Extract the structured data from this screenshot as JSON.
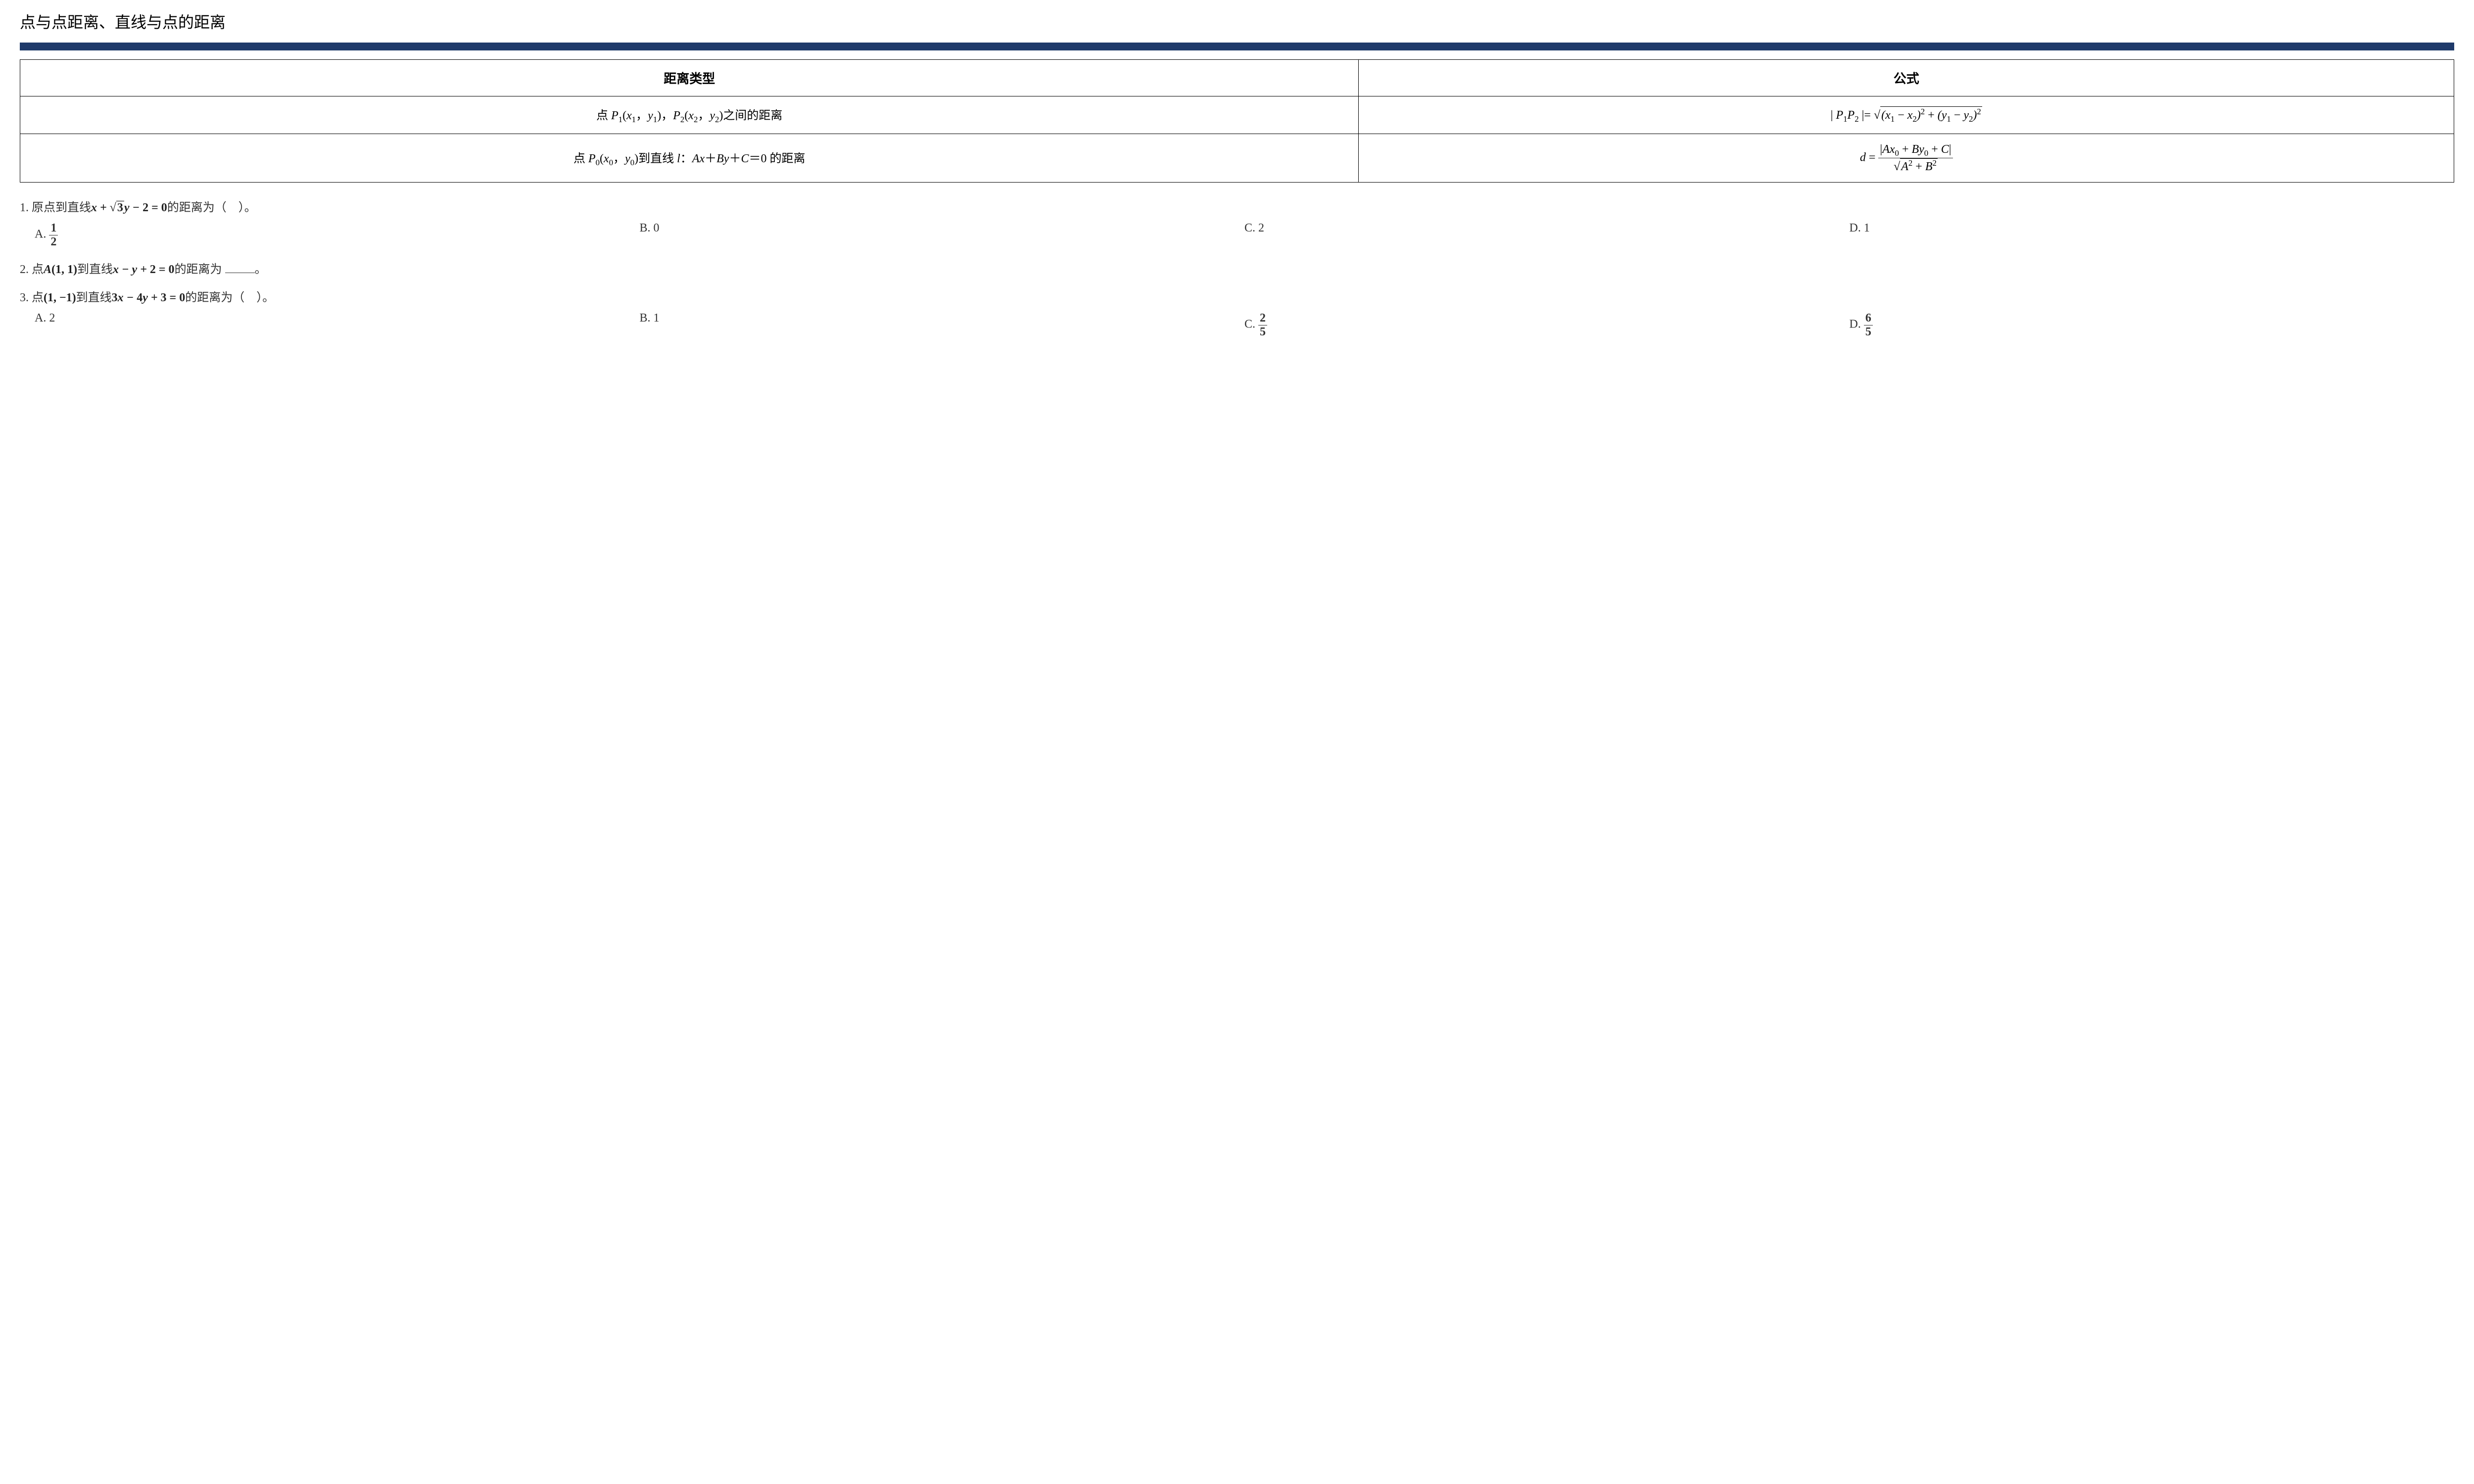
{
  "colors": {
    "bar": "#1f3a6a",
    "border": "#000000",
    "text": "#000000",
    "question_text": "#333333",
    "background": "#ffffff"
  },
  "title": "点与点距离、直线与点的距离",
  "table": {
    "headers": {
      "type": "距离类型",
      "formula": "公式"
    },
    "row1": {
      "desc_prefix": "点 ",
      "desc_mid": "，",
      "desc_suffix": "之间的距离"
    },
    "row2": {
      "desc_prefix": "点 ",
      "desc_mid": "到直线 ",
      "desc_eq": "：",
      "desc_suffix": " 的距离"
    }
  },
  "questions": {
    "q1": {
      "num": "1. ",
      "text_a": "原点到直线",
      "text_b": "的距离为（　）。",
      "choices": {
        "a_label": "A. ",
        "a_num": "1",
        "a_den": "2",
        "b": "B. 0",
        "c": "C. 2",
        "d": "D. 1"
      }
    },
    "q2": {
      "num": "2. ",
      "text_a": "点",
      "text_b": "到直线",
      "text_c": "的距离为",
      "text_d": "。"
    },
    "q3": {
      "num": "3. ",
      "text_a": "点",
      "text_b": "到直线",
      "text_c": "的距离为（　）。",
      "choices": {
        "a": "A. 2",
        "b": "B. 1",
        "c_label": "C. ",
        "c_num": "2",
        "c_den": "5",
        "d_label": "D. ",
        "d_num": "6",
        "d_den": "5"
      }
    }
  }
}
